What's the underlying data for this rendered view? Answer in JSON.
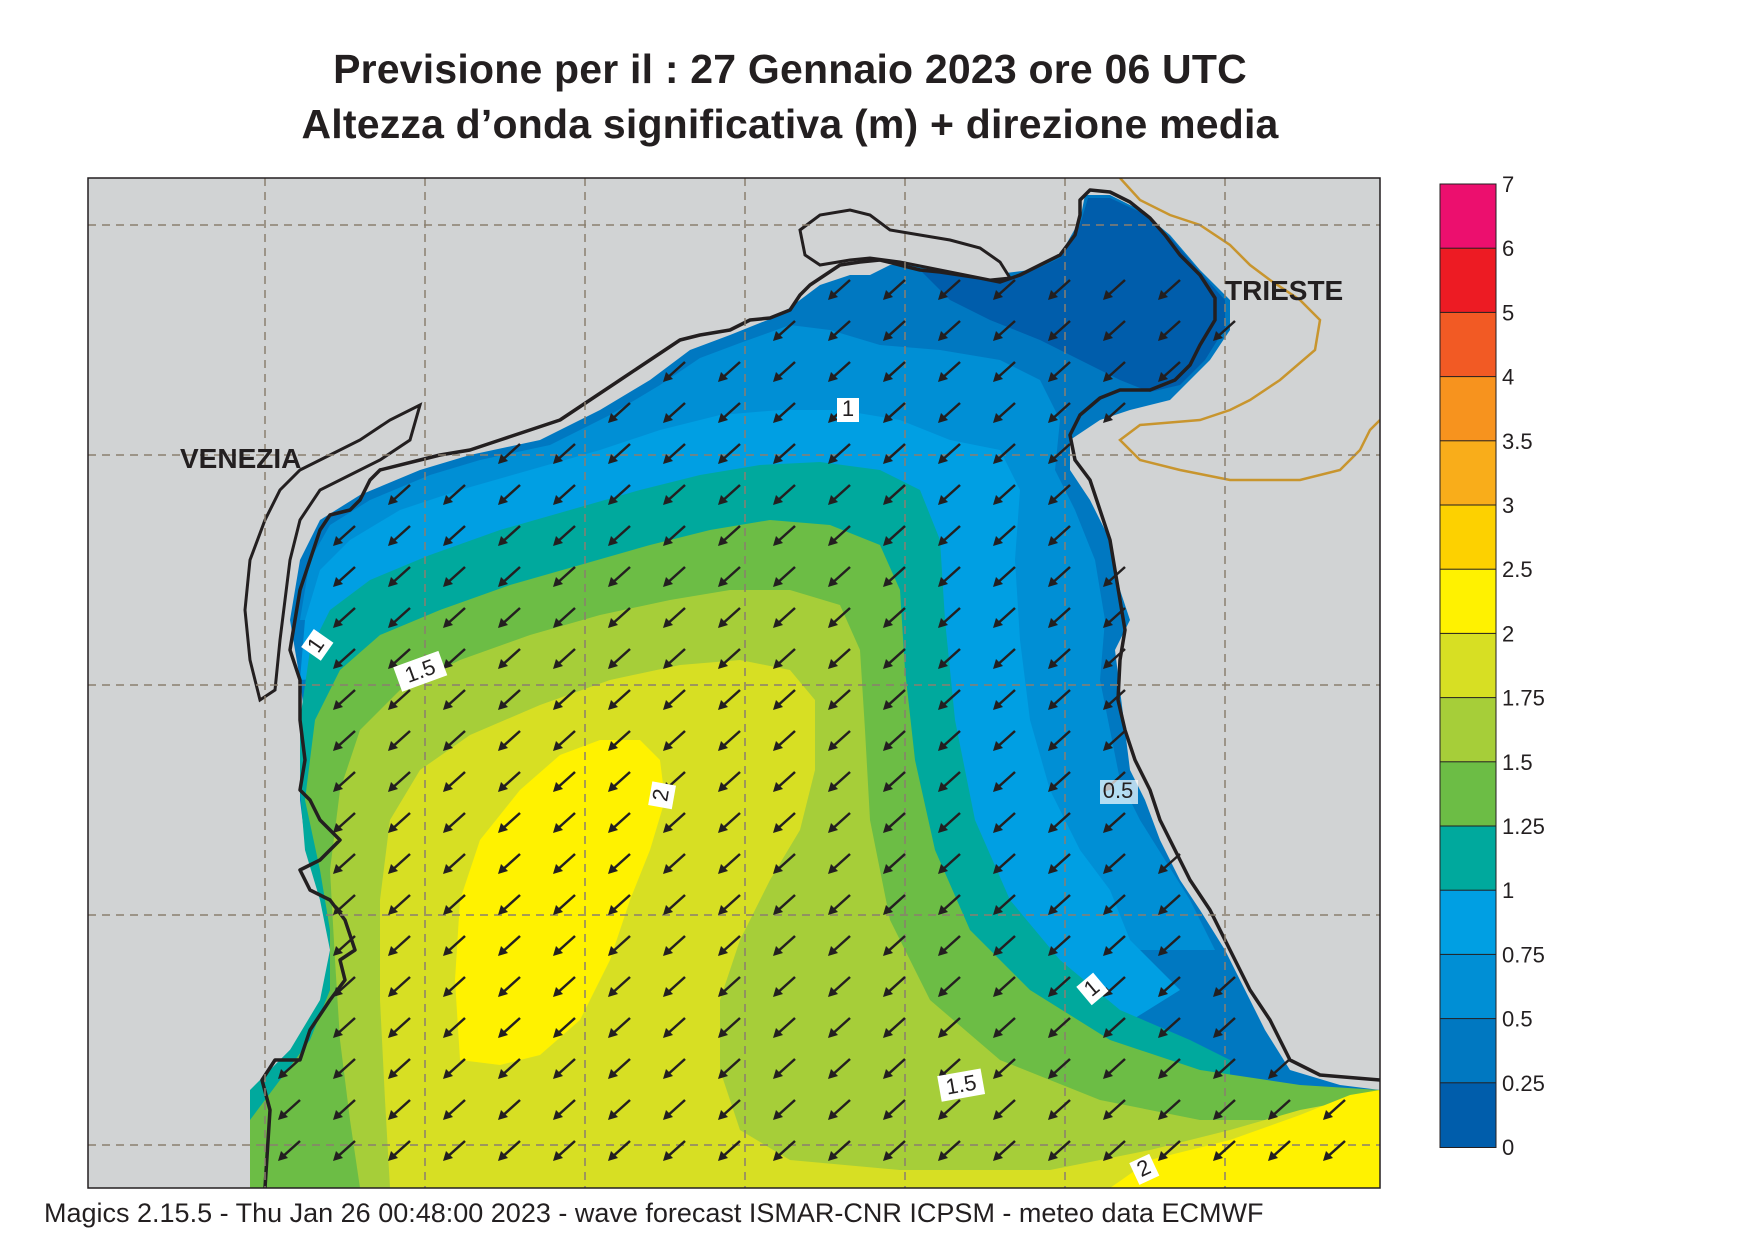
{
  "title": {
    "line1": "Previsione per il  :  27  Gennaio  2023   ore 06 UTC",
    "line2": "Altezza d’onda significativa (m) + direzione media"
  },
  "cities": [
    {
      "name": "VENEZIA"
    },
    {
      "name": "TRIESTE"
    }
  ],
  "contour_labels": [
    "1",
    "1.5",
    "2",
    "0.5",
    "1",
    "1.5",
    "2",
    "1"
  ],
  "legend": {
    "levels": [
      {
        "label": "7",
        "color": "#ec0f6e"
      },
      {
        "label": "6",
        "color": "#ed1b23"
      },
      {
        "label": "5",
        "color": "#f25a24"
      },
      {
        "label": "4",
        "color": "#f7931e"
      },
      {
        "label": "3.5",
        "color": "#f9ad1a"
      },
      {
        "label": "3",
        "color": "#fdd100"
      },
      {
        "label": "2.5",
        "color": "#fff200"
      },
      {
        "label": "2",
        "color": "#d7df23"
      },
      {
        "label": "1.75",
        "color": "#a6ce39"
      },
      {
        "label": "1.5",
        "color": "#6cbd45"
      },
      {
        "label": "1.25",
        "color": "#00a99d"
      },
      {
        "label": "1",
        "color": "#009fe3"
      },
      {
        "label": "0.75",
        "color": "#008fd5"
      },
      {
        "label": "0.5",
        "color": "#0078c1"
      },
      {
        "label": "0.25",
        "color": "#005dab"
      },
      {
        "label": "0",
        "color": ""
      }
    ]
  },
  "colors": {
    "land": "#d1d3d4",
    "coast": "#231f20",
    "border": "#c8952e",
    "grid": "#8a7f6f"
  },
  "footer": "Magics 2.15.5 - Thu Jan 26 00:48:00 2023 - wave forecast  ISMAR-CNR  ICPSM - meteo data    ECMWF"
}
